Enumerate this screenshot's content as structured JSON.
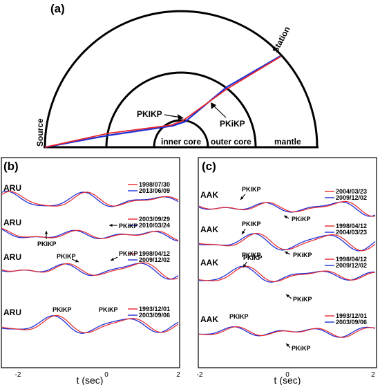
{
  "panel_a": {
    "label": "(a)",
    "labels": {
      "station": "Station",
      "source": "Source",
      "pkikp": "PKIKP",
      "pkikp2": "PKiKP",
      "inner_core": "inner core",
      "outer_core": "outer core",
      "mantle": "mantle"
    }
  },
  "panel_b": {
    "label": "(b)",
    "station": "ARU",
    "phase_a": "PKIKP",
    "phase_b": "PKiKP",
    "pairs": [
      {
        "red": "1998/07/30",
        "blue": "2013/06/09"
      },
      {
        "red": "2003/09/29",
        "blue": "2010/03/24"
      },
      {
        "red": "1998/04/12",
        "blue": "2009/12/02"
      },
      {
        "red": "1993/12/01",
        "blue": "2003/09/06"
      }
    ],
    "xlabel": "t (sec)",
    "ticks": [
      "-2",
      "0",
      "2"
    ]
  },
  "panel_c": {
    "label": "(c)",
    "station": "AAK",
    "phase_a": "PKIKP",
    "phase_b": "PKiKP",
    "pairs": [
      {
        "red": "2004/03/23",
        "blue": "2009/12/02"
      },
      {
        "red": "1998/04/12",
        "blue": "2004/03/23"
      },
      {
        "red": "1998/04/12",
        "blue": "2009/12/02"
      },
      {
        "red": "1993/12/01",
        "blue": "2003/09/06"
      }
    ],
    "xlabel": "t (sec)",
    "ticks": [
      "-2",
      "0",
      "2"
    ]
  },
  "colors": {
    "red": "#e8262b",
    "blue": "#1f2fd6"
  }
}
